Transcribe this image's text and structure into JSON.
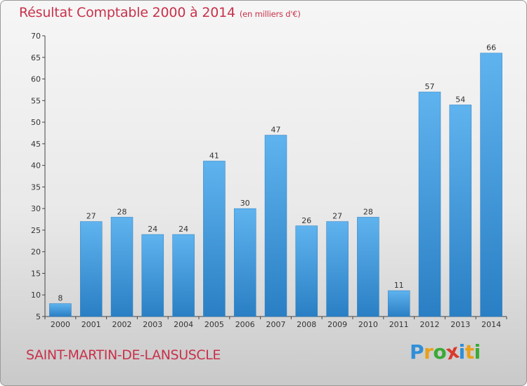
{
  "header": {
    "title": "Résultat Comptable 2000 à 2014",
    "subtitle": "(en milliers d'€)"
  },
  "footer": {
    "town": "SAINT-MARTIN-DE-LANSUSCLE",
    "logo_letters": [
      "P",
      "r",
      "o",
      "x",
      "i",
      "t",
      "i"
    ],
    "logo_colors": [
      "#2f8fd8",
      "#e8a11a",
      "#3aaa35",
      "#d83a2c",
      "#2f8fd8",
      "#e8a11a",
      "#3aaa35"
    ]
  },
  "colors": {
    "title": "#c8314a",
    "bar_top": "#5fb3ee",
    "bar_bottom": "#2a7fc4"
  },
  "chart_data": {
    "type": "bar",
    "categories": [
      "2000",
      "2001",
      "2002",
      "2003",
      "2004",
      "2005",
      "2006",
      "2007",
      "2008",
      "2009",
      "2010",
      "2011",
      "2012",
      "2013",
      "2014"
    ],
    "values": [
      8,
      27,
      28,
      24,
      24,
      41,
      30,
      47,
      26,
      27,
      28,
      11,
      57,
      54,
      66
    ],
    "data_labels": [
      "8",
      "27",
      "28",
      "24",
      "24",
      "41",
      "30",
      "47",
      "26",
      "27",
      "28",
      "11",
      "57",
      "54",
      "66"
    ],
    "ylim": [
      5,
      70
    ],
    "yticks": [
      5,
      10,
      15,
      20,
      25,
      30,
      35,
      40,
      45,
      50,
      55,
      60,
      65,
      70
    ],
    "grid": false,
    "legend": "none"
  }
}
